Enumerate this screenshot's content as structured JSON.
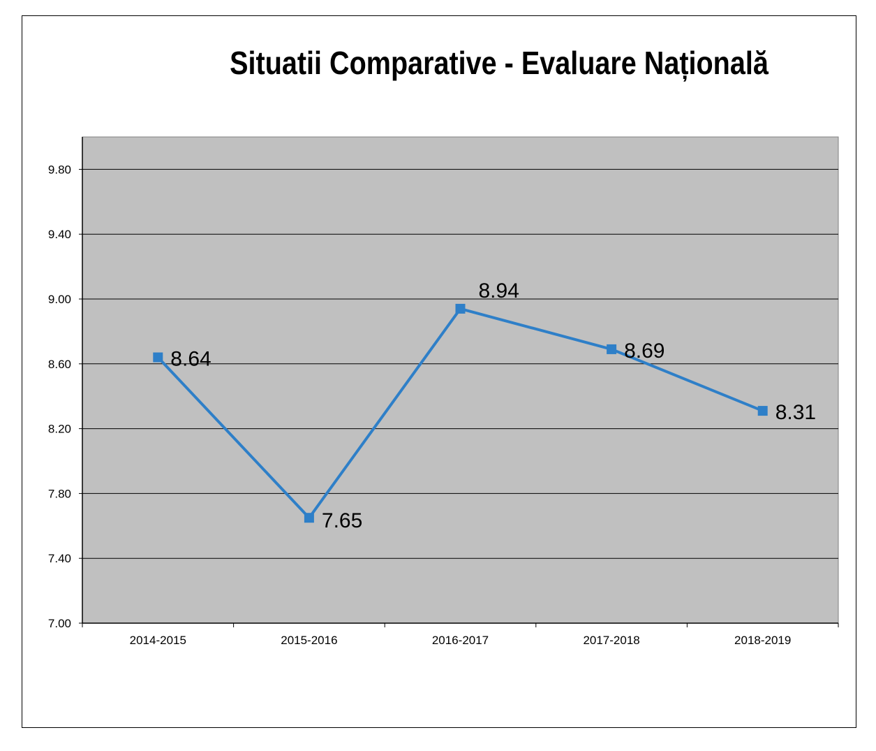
{
  "chart_data": {
    "type": "line",
    "title": "Situatii Comparative - Evaluare Națională",
    "categories": [
      "2014-2015",
      "2015-2016",
      "2016-2017",
      "2017-2018",
      "2018-2019"
    ],
    "series": [
      {
        "values": [
          8.64,
          7.65,
          8.94,
          8.69,
          8.31
        ],
        "data_labels": [
          "8.64",
          "7.65",
          "8.94",
          "8.69",
          "8.31"
        ],
        "color": "#2e7fc8"
      }
    ],
    "y_ticks": [
      "7.00",
      "7.40",
      "7.80",
      "8.20",
      "8.60",
      "9.00",
      "9.40",
      "9.80"
    ],
    "ylim": [
      7.0,
      10.0
    ],
    "xlabel": "",
    "ylabel": "",
    "grid": "horizontal",
    "legend": "none",
    "plot_background": "#c0c0c0"
  }
}
